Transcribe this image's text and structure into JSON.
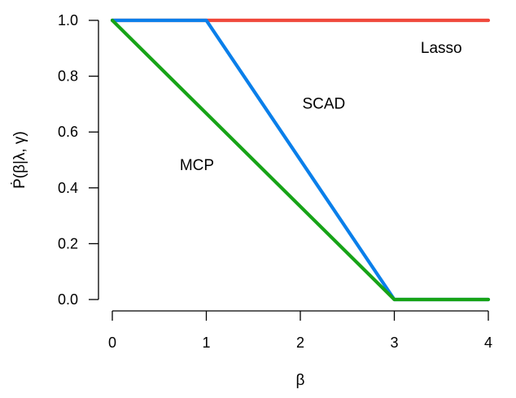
{
  "chart_data": {
    "type": "line",
    "title": "",
    "xlabel": "β",
    "ylabel": "Ṗ(β|λ, γ)",
    "xlim": [
      0,
      4
    ],
    "ylim": [
      0,
      1
    ],
    "x_ticks": [
      "0",
      "1",
      "2",
      "3",
      "4"
    ],
    "y_ticks": [
      "0.0",
      "0.2",
      "0.4",
      "0.6",
      "0.8",
      "1.0"
    ],
    "grid": false,
    "legend": "none",
    "series": [
      {
        "name": "Lasso",
        "color": "#f0493d",
        "x": [
          0,
          4
        ],
        "y": [
          1,
          1
        ]
      },
      {
        "name": "SCAD",
        "color": "#0a7fea",
        "x": [
          0,
          1,
          3,
          4
        ],
        "y": [
          1,
          1,
          0,
          0
        ]
      },
      {
        "name": "MCP",
        "color": "#17a317",
        "x": [
          0,
          3,
          4
        ],
        "y": [
          1,
          0,
          0
        ]
      }
    ],
    "annotations": [
      {
        "text": "Lasso",
        "series": "Lasso",
        "x": 3.5,
        "y": 0.9
      },
      {
        "text": "SCAD",
        "series": "SCAD",
        "x": 2.25,
        "y": 0.7
      },
      {
        "text": "MCP",
        "series": "MCP",
        "x": 0.9,
        "y": 0.48
      }
    ]
  }
}
